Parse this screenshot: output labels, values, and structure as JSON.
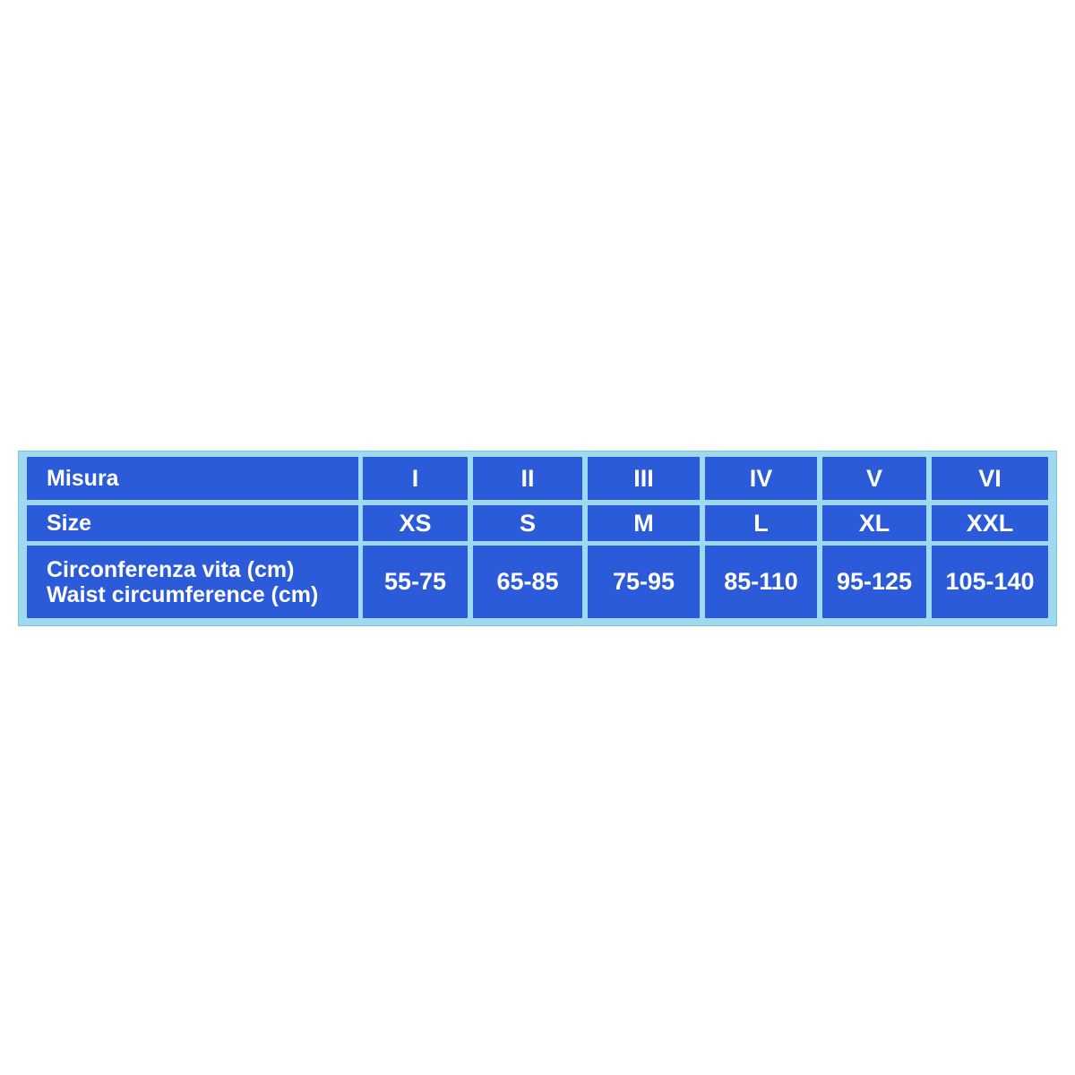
{
  "table": {
    "rows": [
      {
        "label": [
          "Misura"
        ],
        "cells": [
          "I",
          "II",
          "III",
          "IV",
          "V",
          "VI"
        ]
      },
      {
        "label": [
          "Size"
        ],
        "cells": [
          "XS",
          "S",
          "M",
          "L",
          "XL",
          "XXL"
        ]
      },
      {
        "label": [
          "Circonferenza vita (cm)",
          "Waist circumference (cm)"
        ],
        "cells": [
          "55-75",
          "65-85",
          "75-95",
          "85-110",
          "95-125",
          "105-140"
        ]
      }
    ]
  }
}
